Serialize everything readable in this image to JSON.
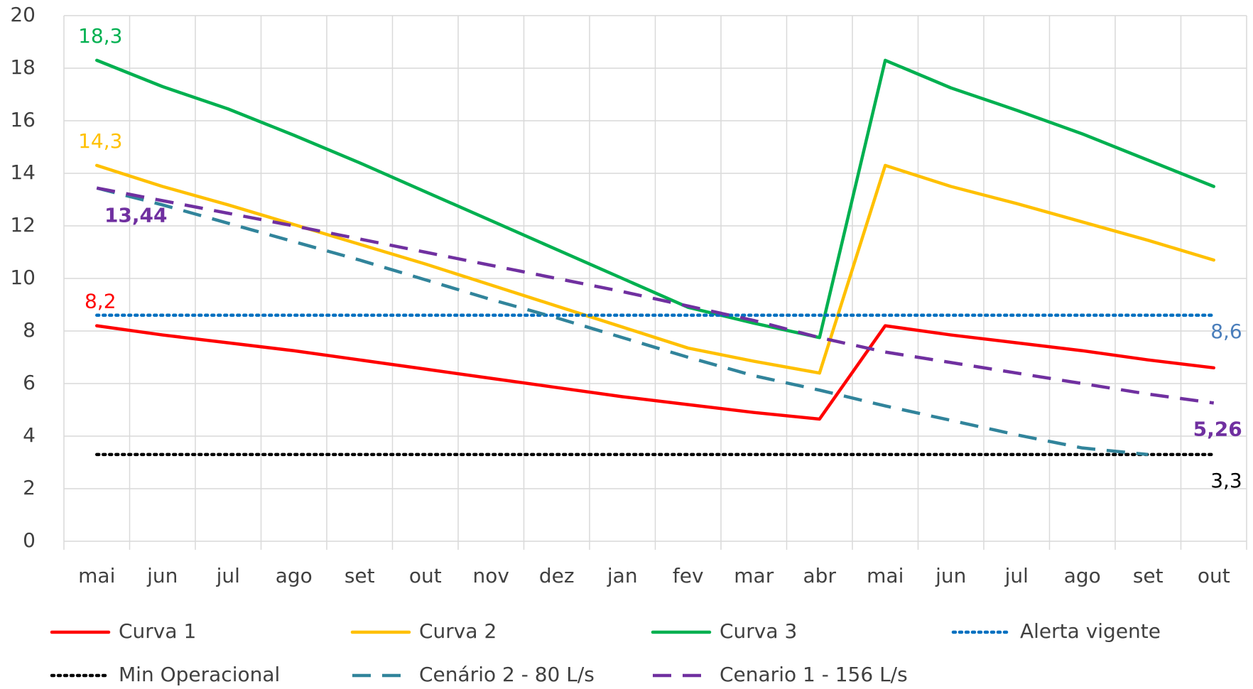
{
  "chart_data": {
    "type": "line",
    "categories": [
      "mai",
      "jun",
      "jul",
      "ago",
      "set",
      "out",
      "nov",
      "dez",
      "jan",
      "fev",
      "mar",
      "abr",
      "mai",
      "jun",
      "jul",
      "ago",
      "set",
      "out"
    ],
    "ylim": [
      0,
      20
    ],
    "yticks": [
      0,
      2,
      4,
      6,
      8,
      10,
      12,
      14,
      16,
      18,
      20
    ],
    "grid": true,
    "legend": "bottom",
    "series": [
      {
        "name": "Curva 1",
        "color": "#ff0000",
        "dash": "solid",
        "values": [
          8.2,
          7.85,
          7.55,
          7.25,
          6.9,
          6.55,
          6.2,
          5.85,
          5.5,
          5.2,
          4.9,
          4.65,
          8.2,
          7.85,
          7.55,
          7.25,
          6.9,
          6.6
        ],
        "value_labels": [
          "8,2",
          null,
          null,
          null,
          null,
          null,
          null,
          null,
          null,
          null,
          null,
          null,
          null,
          null,
          null,
          null,
          null,
          null
        ]
      },
      {
        "name": "Curva 2",
        "color": "#ffc000",
        "dash": "solid",
        "values": [
          14.3,
          13.5,
          12.8,
          12.05,
          11.3,
          10.55,
          9.75,
          8.95,
          8.15,
          7.35,
          6.85,
          6.4,
          14.3,
          13.5,
          12.85,
          12.15,
          11.45,
          10.7
        ],
        "value_labels": [
          "14,3",
          null,
          null,
          null,
          null,
          null,
          null,
          null,
          null,
          null,
          null,
          null,
          null,
          null,
          null,
          null,
          null,
          null
        ]
      },
      {
        "name": "Curva 3",
        "color": "#00b050",
        "dash": "solid",
        "values": [
          18.3,
          17.3,
          16.45,
          15.45,
          14.4,
          13.3,
          12.2,
          11.1,
          10.0,
          8.9,
          8.3,
          7.75,
          18.3,
          17.25,
          16.4,
          15.5,
          14.5,
          13.5
        ],
        "value_labels": [
          "18,3",
          null,
          null,
          null,
          null,
          null,
          null,
          null,
          null,
          null,
          null,
          null,
          null,
          null,
          null,
          null,
          null,
          null
        ]
      },
      {
        "name": "Alerta vigente",
        "color": "#0070c0",
        "dash": "dotted",
        "label_color": "#4a7ebb",
        "values": [
          8.6,
          8.6,
          8.6,
          8.6,
          8.6,
          8.6,
          8.6,
          8.6,
          8.6,
          8.6,
          8.6,
          8.6,
          8.6,
          8.6,
          8.6,
          8.6,
          8.6,
          8.6
        ],
        "value_labels": [
          null,
          null,
          null,
          null,
          null,
          null,
          null,
          null,
          null,
          null,
          null,
          null,
          null,
          null,
          null,
          null,
          null,
          "8,6"
        ]
      },
      {
        "name": "Min Operacional",
        "color": "#000000",
        "dash": "dotted",
        "values": [
          3.3,
          3.3,
          3.3,
          3.3,
          3.3,
          3.3,
          3.3,
          3.3,
          3.3,
          3.3,
          3.3,
          3.3,
          3.3,
          3.3,
          3.3,
          3.3,
          3.3,
          3.3
        ],
        "value_labels": [
          null,
          null,
          null,
          null,
          null,
          null,
          null,
          null,
          null,
          null,
          null,
          null,
          null,
          null,
          null,
          null,
          null,
          "3,3"
        ]
      },
      {
        "name": "Cenário 2 - 80 L/s",
        "color": "#31849b",
        "dash": "dashed",
        "values": [
          13.44,
          12.8,
          12.1,
          11.4,
          10.7,
          9.95,
          9.2,
          8.5,
          7.75,
          7.0,
          6.3,
          5.75,
          5.15,
          4.6,
          4.05,
          3.55,
          3.3,
          null
        ]
      },
      {
        "name": "Cenario 1 - 156 L/s",
        "color": "#7030a0",
        "dash": "dashed",
        "label_bold": true,
        "values": [
          13.44,
          12.96,
          12.48,
          12.0,
          11.5,
          11.0,
          10.5,
          10.0,
          9.5,
          8.95,
          8.4,
          7.75,
          7.2,
          6.8,
          6.4,
          6.0,
          5.6,
          5.26
        ],
        "value_labels": [
          "13,44",
          null,
          null,
          null,
          null,
          null,
          null,
          null,
          null,
          null,
          null,
          null,
          null,
          null,
          null,
          null,
          null,
          "5,26"
        ]
      }
    ]
  }
}
